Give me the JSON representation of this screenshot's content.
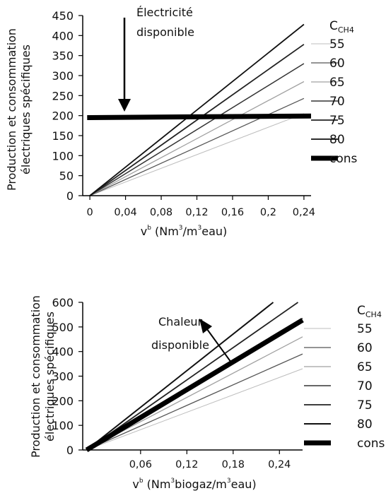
{
  "chart_data": [
    {
      "type": "line",
      "ylabel_line1": "Production et consommation",
      "ylabel_line2": "électriques spécifiques",
      "xlabel_main": "v",
      "xlabel_sup": "b",
      "xlabel_unit_a": " (Nm",
      "xlabel_unit_sup1": "3",
      "xlabel_unit_b": "/m",
      "xlabel_unit_sup2": "3",
      "xlabel_unit_c": "eau)",
      "annotation_line1": "Électricité",
      "annotation_line2": "disponible",
      "legend_title": "C",
      "legend_title_sub": "CH4",
      "xlim": [
        -0.008,
        0.248
      ],
      "ylim": [
        0,
        450
      ],
      "xticks": [
        "0",
        "0,04",
        "0,08",
        "0,12",
        "0,16",
        "0,2",
        "0,24"
      ],
      "xtick_values": [
        0,
        0.04,
        0.08,
        0.12,
        0.16,
        0.2,
        0.24
      ],
      "yticks": [
        "0",
        "50",
        "100",
        "150",
        "200",
        "250",
        "300",
        "350",
        "400",
        "450"
      ],
      "ytick_values": [
        0,
        50,
        100,
        150,
        200,
        250,
        300,
        350,
        400,
        450
      ],
      "series": [
        {
          "name": "55",
          "x": [
            0,
            0.24
          ],
          "y": [
            0,
            205
          ],
          "color": "#bdbdbd",
          "width": 1
        },
        {
          "name": "60",
          "x": [
            0,
            0.24
          ],
          "y": [
            0,
            243
          ],
          "color": "#555555",
          "width": 1.3
        },
        {
          "name": "65",
          "x": [
            0,
            0.24
          ],
          "y": [
            0,
            285
          ],
          "color": "#a0a0a0",
          "width": 1.3
        },
        {
          "name": "70",
          "x": [
            0,
            0.24
          ],
          "y": [
            0,
            330
          ],
          "color": "#333333",
          "width": 1.5
        },
        {
          "name": "75",
          "x": [
            0,
            0.24
          ],
          "y": [
            0,
            378
          ],
          "color": "#222222",
          "width": 1.8
        },
        {
          "name": "80",
          "x": [
            0,
            0.24
          ],
          "y": [
            0,
            428
          ],
          "color": "#111111",
          "width": 1.8
        },
        {
          "name": "cons",
          "x": [
            -0.003,
            0.248
          ],
          "y": [
            195,
            199
          ],
          "color": "#000000",
          "width": 7
        }
      ]
    },
    {
      "type": "line",
      "ylabel_line1": "Production et consommation",
      "ylabel_line2": "électriques spécifiques",
      "xlabel_main": "v",
      "xlabel_sup": "b",
      "xlabel_unit_a": " (Nm",
      "xlabel_unit_sup1": "3",
      "xlabel_unit_b": "biogaz/m",
      "xlabel_unit_sup2": "3",
      "xlabel_unit_c": "eau)",
      "annotation_line1": "Chaleur",
      "annotation_line2": "disponible",
      "legend_title": "C",
      "legend_title_sub": "CH4",
      "xlim": [
        -0.015,
        0.27
      ],
      "ylim": [
        0,
        600
      ],
      "xticks": [
        "0,06",
        "0,12",
        "0,18",
        "0,24"
      ],
      "xtick_values": [
        0.06,
        0.12,
        0.18,
        0.24
      ],
      "yticks": [
        "0",
        "100",
        "200",
        "300",
        "400",
        "500",
        "600"
      ],
      "ytick_values": [
        0,
        100,
        200,
        300,
        400,
        500,
        600
      ],
      "series": [
        {
          "name": "55",
          "x": [
            -0.01,
            0.27
          ],
          "y": [
            0,
            330
          ],
          "color": "#bdbdbd",
          "width": 1
        },
        {
          "name": "60",
          "x": [
            -0.01,
            0.27
          ],
          "y": [
            0,
            390
          ],
          "color": "#555555",
          "width": 1.3
        },
        {
          "name": "65",
          "x": [
            -0.01,
            0.27
          ],
          "y": [
            0,
            460
          ],
          "color": "#a0a0a0",
          "width": 1.3
        },
        {
          "name": "70",
          "x": [
            -0.01,
            0.27
          ],
          "y": [
            0,
            535
          ],
          "color": "#333333",
          "width": 1.5
        },
        {
          "name": "75",
          "x": [
            -0.01,
            0.264
          ],
          "y": [
            0,
            600
          ],
          "color": "#222222",
          "width": 1.8
        },
        {
          "name": "80",
          "x": [
            -0.01,
            0.232
          ],
          "y": [
            0,
            600
          ],
          "color": "#111111",
          "width": 2
        },
        {
          "name": "cons",
          "x": [
            -0.01,
            0.27
          ],
          "y": [
            0,
            528
          ],
          "color": "#000000",
          "width": 7
        }
      ]
    }
  ]
}
